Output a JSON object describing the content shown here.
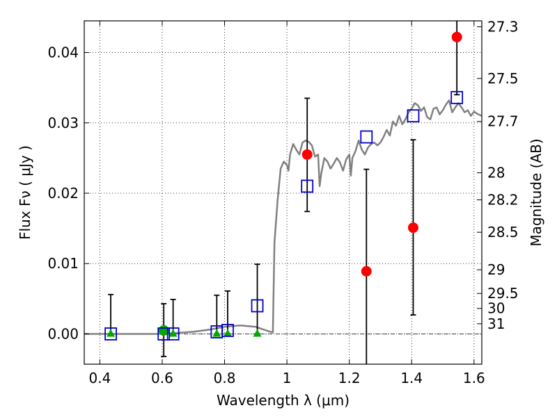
{
  "chart_data": {
    "type": "scatter",
    "xlabel": "Wavelength  λ (μm)",
    "ylabel": "Flux  Fν  ( μJy )",
    "ylabel_right": "Magnitude (AB)",
    "xlim": [
      0.35,
      1.625
    ],
    "ylim": [
      -0.0043,
      0.0445
    ],
    "grid": true,
    "x_ticks": [
      {
        "value": 0.4,
        "label": "0.4"
      },
      {
        "value": 0.6,
        "label": "0.6"
      },
      {
        "value": 0.8,
        "label": "0.8"
      },
      {
        "value": 1.0,
        "label": "1"
      },
      {
        "value": 1.2,
        "label": "1.2"
      },
      {
        "value": 1.4,
        "label": "1.4"
      },
      {
        "value": 1.6,
        "label": "1.6"
      }
    ],
    "y_ticks": [
      {
        "value": 0.0,
        "label": "0.00"
      },
      {
        "value": 0.01,
        "label": "0.01"
      },
      {
        "value": 0.02,
        "label": "0.02"
      },
      {
        "value": 0.03,
        "label": "0.03"
      },
      {
        "value": 0.04,
        "label": "0.04"
      }
    ],
    "right_ticks": [
      {
        "mag": 27.3,
        "label": "27.3"
      },
      {
        "mag": 27.5,
        "label": "27.5"
      },
      {
        "mag": 27.7,
        "label": "27.7"
      },
      {
        "mag": 28.0,
        "label": "28"
      },
      {
        "mag": 28.2,
        "label": "28.2"
      },
      {
        "mag": 28.5,
        "label": "28.5"
      },
      {
        "mag": 29.0,
        "label": "29"
      },
      {
        "mag": 29.5,
        "label": "29.5"
      },
      {
        "mag": 30.0,
        "label": "30"
      },
      {
        "mag": 31.0,
        "label": "31"
      }
    ],
    "template_spectrum": {
      "color": "#808080",
      "points": [
        [
          0.35,
          0.0
        ],
        [
          0.5,
          0.0
        ],
        [
          0.6,
          0.0
        ],
        [
          0.7,
          0.0003
        ],
        [
          0.75,
          0.0006
        ],
        [
          0.8,
          0.001
        ],
        [
          0.85,
          0.0012
        ],
        [
          0.9,
          0.001
        ],
        [
          0.92,
          0.0007
        ],
        [
          0.94,
          0.0004
        ],
        [
          0.955,
          0.0002
        ],
        [
          0.96,
          0.013
        ],
        [
          0.97,
          0.019
        ],
        [
          0.98,
          0.0235
        ],
        [
          0.99,
          0.0245
        ],
        [
          1.0,
          0.024
        ],
        [
          1.005,
          0.0232
        ],
        [
          1.01,
          0.0255
        ],
        [
          1.02,
          0.027
        ],
        [
          1.03,
          0.0262
        ],
        [
          1.04,
          0.0255
        ],
        [
          1.05,
          0.0272
        ],
        [
          1.06,
          0.0275
        ],
        [
          1.07,
          0.0273
        ],
        [
          1.08,
          0.0268
        ],
        [
          1.09,
          0.0252
        ],
        [
          1.1,
          0.0255
        ],
        [
          1.105,
          0.021
        ],
        [
          1.11,
          0.0228
        ],
        [
          1.12,
          0.025
        ],
        [
          1.13,
          0.0245
        ],
        [
          1.14,
          0.0235
        ],
        [
          1.15,
          0.0242
        ],
        [
          1.16,
          0.025
        ],
        [
          1.17,
          0.0244
        ],
        [
          1.18,
          0.0232
        ],
        [
          1.19,
          0.0248
        ],
        [
          1.2,
          0.0255
        ],
        [
          1.205,
          0.0225
        ],
        [
          1.21,
          0.025
        ],
        [
          1.22,
          0.026
        ],
        [
          1.23,
          0.0275
        ],
        [
          1.24,
          0.0262
        ],
        [
          1.25,
          0.0255
        ],
        [
          1.26,
          0.0265
        ],
        [
          1.27,
          0.027
        ],
        [
          1.28,
          0.0272
        ],
        [
          1.29,
          0.0268
        ],
        [
          1.3,
          0.0272
        ],
        [
          1.31,
          0.028
        ],
        [
          1.32,
          0.029
        ],
        [
          1.33,
          0.0282
        ],
        [
          1.34,
          0.0302
        ],
        [
          1.35,
          0.0296
        ],
        [
          1.36,
          0.031
        ],
        [
          1.37,
          0.0298
        ],
        [
          1.38,
          0.0305
        ],
        [
          1.39,
          0.0315
        ],
        [
          1.4,
          0.032
        ],
        [
          1.41,
          0.0328
        ],
        [
          1.42,
          0.0325
        ],
        [
          1.43,
          0.0317
        ],
        [
          1.44,
          0.0322
        ],
        [
          1.45,
          0.0308
        ],
        [
          1.46,
          0.0305
        ],
        [
          1.47,
          0.032
        ],
        [
          1.48,
          0.0322
        ],
        [
          1.49,
          0.0312
        ],
        [
          1.5,
          0.0318
        ],
        [
          1.51,
          0.0326
        ],
        [
          1.52,
          0.0332
        ],
        [
          1.53,
          0.0315
        ],
        [
          1.54,
          0.0322
        ],
        [
          1.55,
          0.0328
        ],
        [
          1.56,
          0.0322
        ],
        [
          1.57,
          0.0315
        ],
        [
          1.58,
          0.0318
        ],
        [
          1.59,
          0.031
        ],
        [
          1.6,
          0.0316
        ],
        [
          1.61,
          0.0313
        ],
        [
          1.625,
          0.031
        ]
      ]
    },
    "model_bandpass": {
      "marker": "open-square",
      "color": "#0000cc",
      "points": [
        [
          0.435,
          0.0
        ],
        [
          0.605,
          0.0
        ],
        [
          0.635,
          0.0
        ],
        [
          0.775,
          0.0003
        ],
        [
          0.81,
          0.0005
        ],
        [
          0.905,
          0.004
        ],
        [
          1.065,
          0.021
        ],
        [
          1.255,
          0.028
        ],
        [
          1.405,
          0.031
        ],
        [
          1.545,
          0.0336
        ]
      ]
    },
    "limits": {
      "marker": "triangle",
      "color": "#00aa00",
      "points": [
        {
          "x": 0.435,
          "y": 0.0,
          "err_lo": 0.0,
          "err_hi": 0.0056
        },
        {
          "x": 0.635,
          "y": 0.0,
          "err_lo": 0.0,
          "err_hi": 0.0049
        },
        {
          "x": 0.775,
          "y": 0.0,
          "err_lo": 0.0,
          "err_hi": 0.0055
        },
        {
          "x": 0.81,
          "y": 0.0,
          "err_lo": 0.0,
          "err_hi": 0.0061
        },
        {
          "x": 0.905,
          "y": 0.0,
          "err_lo": 0.0,
          "err_hi": 0.0099
        }
      ]
    },
    "weak_detection": {
      "marker": "circle",
      "color": "#00aa00",
      "points": [
        {
          "x": 0.605,
          "y": 0.0005,
          "err_lo": 0.0037,
          "err_hi": 0.0038
        }
      ]
    },
    "detections": {
      "marker": "circle",
      "color": "#ff0000",
      "points": [
        {
          "x": 1.065,
          "y": 0.0255,
          "err_lo": 0.0081,
          "err_hi": 0.008
        },
        {
          "x": 1.255,
          "y": 0.0089,
          "err_lo": 0.0145,
          "err_hi": 0.0145
        },
        {
          "x": 1.405,
          "y": 0.0151,
          "err_lo": 0.0124,
          "err_hi": 0.0125
        },
        {
          "x": 1.545,
          "y": 0.0422,
          "err_lo": 0.0082,
          "err_hi": 0.0082
        }
      ]
    }
  }
}
